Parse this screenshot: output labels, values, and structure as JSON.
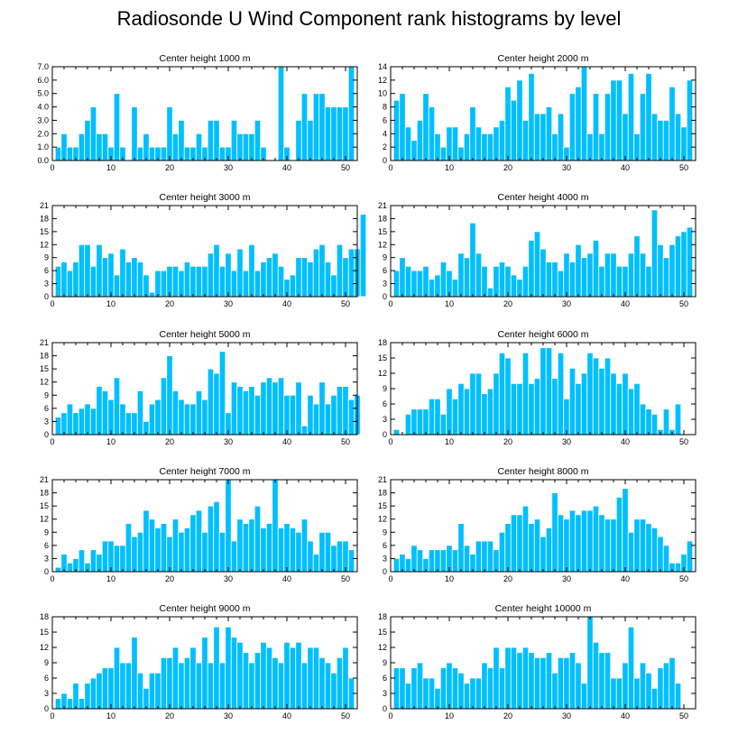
{
  "title": "Radiosonde U Wind Component rank histograms by level",
  "colors": {
    "bar": "#00BFFF",
    "bar_edge": "#ffffff",
    "axis": "#000000"
  },
  "chart_data": [
    {
      "type": "bar",
      "title": "Center height 1000 m",
      "xlim": [
        0,
        52
      ],
      "ylim": [
        0,
        7
      ],
      "xticks": [
        0,
        10,
        20,
        30,
        40,
        50
      ],
      "yticks": [
        0,
        1,
        2,
        3,
        4,
        5,
        6,
        7
      ],
      "ytick_labels": [
        "0.0",
        "1.0",
        "2.0",
        "3.0",
        "4.0",
        "5.0",
        "6.0",
        "7.0"
      ],
      "values": [
        1,
        2,
        1,
        1,
        2,
        3,
        4,
        2,
        2,
        1,
        5,
        1,
        0,
        4,
        1,
        2,
        1,
        1,
        1,
        4,
        2,
        3,
        1,
        1,
        2,
        1,
        3,
        3,
        1,
        1,
        3,
        2,
        2,
        2,
        3,
        1,
        0,
        0,
        7,
        1,
        0,
        3,
        5,
        3,
        5,
        5,
        4,
        4,
        4,
        4,
        7
      ]
    },
    {
      "type": "bar",
      "title": "Center height 2000 m",
      "xlim": [
        0,
        52
      ],
      "ylim": [
        0,
        14
      ],
      "xticks": [
        0,
        10,
        20,
        30,
        40,
        50
      ],
      "yticks": [
        0,
        2,
        4,
        6,
        8,
        10,
        12,
        14
      ],
      "ytick_labels": [
        "0",
        "2",
        "4",
        "6",
        "8",
        "10",
        "12",
        "14"
      ],
      "values": [
        9,
        10,
        5,
        3,
        6,
        10,
        8,
        4,
        2,
        5,
        5,
        2,
        4,
        8,
        5,
        4,
        4,
        5,
        6,
        11,
        9,
        12,
        6,
        13,
        7,
        7,
        8,
        4,
        7,
        2,
        10,
        11,
        14,
        4,
        10,
        4,
        10,
        12,
        12,
        7,
        13,
        4,
        10,
        13,
        7,
        6,
        6,
        11,
        7,
        5,
        12
      ]
    },
    {
      "type": "bar",
      "title": "Center height 3000 m",
      "xlim": [
        0,
        52
      ],
      "ylim": [
        0,
        21
      ],
      "xticks": [
        0,
        10,
        20,
        30,
        40,
        50
      ],
      "yticks": [
        0,
        3,
        6,
        9,
        12,
        15,
        18,
        21
      ],
      "ytick_labels": [
        "0",
        "3",
        "6",
        "9",
        "12",
        "15",
        "18",
        "21"
      ],
      "values": [
        7,
        8,
        6,
        8,
        12,
        12,
        7,
        12,
        9,
        10,
        5,
        11,
        8,
        9,
        8,
        5,
        1,
        6,
        6,
        7,
        7,
        6,
        8,
        7,
        7,
        7,
        10,
        12,
        7,
        10,
        6,
        11,
        6,
        12,
        6,
        8,
        9,
        10,
        7,
        4,
        5,
        9,
        9,
        8,
        11,
        12,
        8,
        5,
        12,
        9,
        11,
        11,
        19
      ]
    },
    {
      "type": "bar",
      "title": "Center height 4000 m",
      "xlim": [
        0,
        52
      ],
      "ylim": [
        0,
        21
      ],
      "xticks": [
        0,
        10,
        20,
        30,
        40,
        50
      ],
      "yticks": [
        0,
        3,
        6,
        9,
        12,
        15,
        18,
        21
      ],
      "ytick_labels": [
        "0",
        "3",
        "6",
        "9",
        "12",
        "15",
        "18",
        "21"
      ],
      "values": [
        6,
        9,
        7,
        6,
        6,
        7,
        4,
        5,
        8,
        6,
        4,
        10,
        9,
        17,
        10,
        7,
        2,
        7,
        8,
        7,
        5,
        4,
        7,
        13,
        15,
        11,
        8,
        8,
        6,
        10,
        8,
        12,
        9,
        10,
        13,
        7,
        10,
        10,
        7,
        7,
        10,
        14,
        10,
        7,
        20,
        12,
        9,
        12,
        14,
        15,
        16
      ]
    },
    {
      "type": "bar",
      "title": "Center height 5000 m",
      "xlim": [
        0,
        52
      ],
      "ylim": [
        0,
        21
      ],
      "xticks": [
        0,
        10,
        20,
        30,
        40,
        50
      ],
      "yticks": [
        0,
        3,
        6,
        9,
        12,
        15,
        18,
        21
      ],
      "ytick_labels": [
        "0",
        "3",
        "6",
        "9",
        "12",
        "15",
        "18",
        "21"
      ],
      "values": [
        4,
        5,
        7,
        5,
        6,
        7,
        6,
        11,
        10,
        8,
        13,
        7,
        5,
        5,
        10,
        3,
        7,
        8,
        13,
        18,
        10,
        8,
        7,
        7,
        10,
        8,
        15,
        14,
        19,
        5,
        12,
        11,
        10,
        11,
        9,
        12,
        13,
        12,
        13,
        9,
        9,
        12,
        2,
        9,
        7,
        12,
        7,
        9,
        11,
        11,
        8,
        9
      ]
    },
    {
      "type": "bar",
      "title": "Center height 6000 m",
      "xlim": [
        0,
        52
      ],
      "ylim": [
        0,
        18
      ],
      "xticks": [
        0,
        10,
        20,
        30,
        40,
        50
      ],
      "yticks": [
        0,
        3,
        6,
        9,
        12,
        15,
        18
      ],
      "ytick_labels": [
        "0",
        "3",
        "6",
        "9",
        "12",
        "15",
        "18"
      ],
      "values": [
        1,
        0,
        4,
        5,
        5,
        5,
        7,
        7,
        4,
        9,
        7,
        10,
        9,
        12,
        12,
        8,
        9,
        12,
        16,
        15,
        10,
        10,
        16,
        10,
        11,
        17,
        17,
        11,
        16,
        7,
        13,
        10,
        12,
        16,
        15,
        13,
        15,
        12,
        10,
        12,
        9,
        10,
        6,
        5,
        4,
        1,
        5,
        1,
        6
      ]
    },
    {
      "type": "bar",
      "title": "Center height 7000 m",
      "xlim": [
        0,
        52
      ],
      "ylim": [
        0,
        21
      ],
      "xticks": [
        0,
        10,
        20,
        30,
        40,
        50
      ],
      "yticks": [
        0,
        3,
        6,
        9,
        12,
        15,
        18,
        21
      ],
      "ytick_labels": [
        "0",
        "3",
        "6",
        "9",
        "12",
        "15",
        "18",
        "21"
      ],
      "values": [
        1,
        4,
        2,
        3,
        5,
        2,
        5,
        4,
        7,
        7,
        6,
        6,
        11,
        8,
        9,
        14,
        12,
        10,
        11,
        8,
        12,
        9,
        10,
        13,
        14,
        9,
        15,
        16,
        9,
        21,
        7,
        12,
        11,
        12,
        15,
        10,
        11,
        21,
        10,
        11,
        10,
        9,
        12,
        7,
        4,
        9,
        9,
        6,
        7,
        7,
        5
      ]
    },
    {
      "type": "bar",
      "title": "Center height 8000 m",
      "xlim": [
        0,
        52
      ],
      "ylim": [
        0,
        21
      ],
      "xticks": [
        0,
        10,
        20,
        30,
        40,
        50
      ],
      "yticks": [
        0,
        3,
        6,
        9,
        12,
        15,
        18,
        21
      ],
      "ytick_labels": [
        "0",
        "3",
        "6",
        "9",
        "12",
        "15",
        "18",
        "21"
      ],
      "values": [
        3,
        4,
        3,
        6,
        5,
        3,
        5,
        5,
        5,
        6,
        5,
        11,
        6,
        4,
        7,
        7,
        7,
        5,
        9,
        11,
        13,
        13,
        15,
        11,
        12,
        8,
        10,
        18,
        13,
        12,
        14,
        13,
        14,
        14,
        15,
        13,
        12,
        12,
        17,
        19,
        9,
        12,
        12,
        11,
        10,
        8,
        6,
        2,
        2,
        4,
        7
      ]
    },
    {
      "type": "bar",
      "title": "Center height 9000 m",
      "xlim": [
        0,
        52
      ],
      "ylim": [
        0,
        18
      ],
      "xticks": [
        0,
        10,
        20,
        30,
        40,
        50
      ],
      "yticks": [
        0,
        3,
        6,
        9,
        12,
        15,
        18
      ],
      "ytick_labels": [
        "0",
        "3",
        "6",
        "9",
        "12",
        "15",
        "18"
      ],
      "values": [
        2,
        3,
        2,
        5,
        2,
        5,
        6,
        7,
        8,
        8,
        12,
        9,
        9,
        14,
        7,
        4,
        7,
        7,
        10,
        10,
        12,
        9,
        10,
        12,
        9,
        14,
        9,
        16,
        9,
        16,
        14,
        13,
        11,
        9,
        11,
        13,
        12,
        10,
        9,
        13,
        12,
        13,
        9,
        12,
        12,
        10,
        9,
        7,
        10,
        12,
        6
      ]
    },
    {
      "type": "bar",
      "title": "Center height 10000 m",
      "xlim": [
        0,
        52
      ],
      "ylim": [
        0,
        18
      ],
      "xticks": [
        0,
        10,
        20,
        30,
        40,
        50
      ],
      "yticks": [
        0,
        3,
        6,
        9,
        12,
        15,
        18
      ],
      "ytick_labels": [
        "0",
        "3",
        "6",
        "9",
        "12",
        "15",
        "18"
      ],
      "values": [
        8,
        8,
        5,
        8,
        9,
        6,
        6,
        4,
        8,
        9,
        8,
        7,
        5,
        6,
        6,
        9,
        8,
        12,
        8,
        12,
        12,
        11,
        12,
        11,
        10,
        10,
        11,
        7,
        10,
        10,
        11,
        9,
        5,
        18,
        13,
        11,
        11,
        6,
        6,
        9,
        16,
        6,
        9,
        7,
        4,
        8,
        9,
        10,
        5
      ]
    }
  ]
}
